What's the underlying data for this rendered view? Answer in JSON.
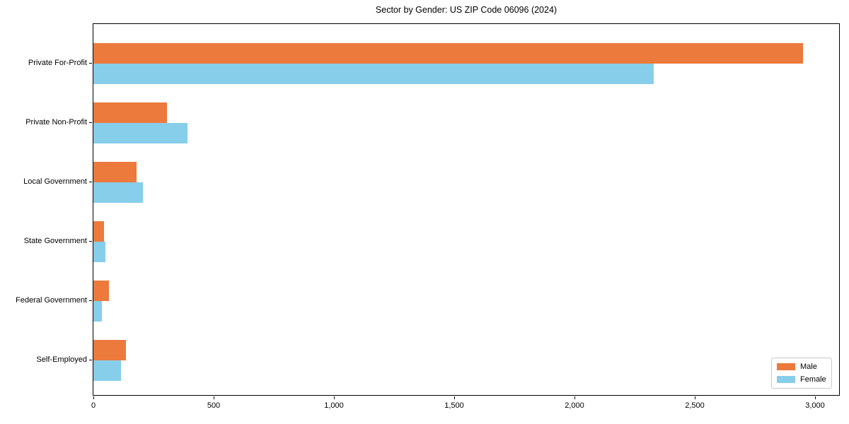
{
  "title": "Sector by Gender: US ZIP Code 06096 (2024)",
  "chart_data": {
    "type": "bar",
    "orientation": "horizontal",
    "title": "Sector by Gender: US ZIP Code 06096 (2024)",
    "categories": [
      "Private For-Profit",
      "Private Non-Profit",
      "Local Government",
      "State Government",
      "Federal Government",
      "Self-Employed"
    ],
    "series": [
      {
        "name": "Male",
        "color": "#EC7A3C",
        "values": [
          2950,
          305,
          180,
          45,
          65,
          135
        ]
      },
      {
        "name": "Female",
        "color": "#87CEEB",
        "values": [
          2330,
          390,
          205,
          50,
          35,
          115
        ]
      }
    ],
    "xlabel": "",
    "ylabel": "",
    "xlim": [
      0,
      3106
    ],
    "x_ticks": [
      0,
      500,
      1000,
      1500,
      2000,
      2500,
      3000
    ],
    "x_tick_labels": [
      "0",
      "500",
      "1,000",
      "1,500",
      "2,000",
      "2,500",
      "3,000"
    ],
    "grid": false,
    "legend_position": "lower right",
    "bar_colors": {
      "male": "#EC7A3C",
      "female": "#87CEEB"
    }
  },
  "legend": {
    "items": [
      {
        "label": "Male",
        "color": "#EC7A3C"
      },
      {
        "label": "Female",
        "color": "#87CEEB"
      }
    ]
  }
}
